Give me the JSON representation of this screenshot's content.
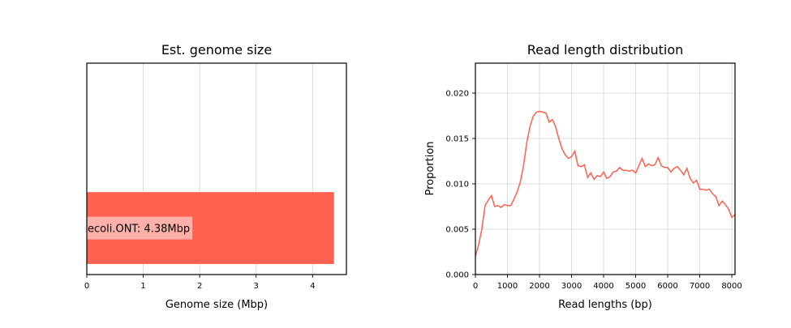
{
  "chart_data": [
    {
      "type": "bar",
      "orientation": "horizontal",
      "title": "Est. genome size",
      "xlabel": "Genome size (Mbp)",
      "ylabel": "",
      "xlim": [
        0,
        4.6
      ],
      "xticks": [
        0,
        1,
        2,
        3,
        4
      ],
      "grid": true,
      "categories": [
        "ecoli.ONT"
      ],
      "values": [
        4.38
      ],
      "bar_labels": [
        "ecoli.ONT: 4.38Mbp"
      ],
      "color": "#ff6150"
    },
    {
      "type": "line",
      "title": "Read length distribution",
      "xlabel": "Read lengths (bp)",
      "ylabel": "Proportion",
      "xlim": [
        0,
        8100
      ],
      "ylim": [
        0,
        0.0233
      ],
      "xticks": [
        0,
        1000,
        2000,
        3000,
        4000,
        5000,
        6000,
        7000,
        8000
      ],
      "yticks": [
        "0.000",
        "0.005",
        "0.010",
        "0.015",
        "0.020"
      ],
      "grid": true,
      "color": "#ff6150",
      "x": [
        0,
        100,
        200,
        300,
        400,
        500,
        600,
        700,
        800,
        900,
        1000,
        1100,
        1200,
        1300,
        1400,
        1500,
        1600,
        1700,
        1800,
        1900,
        2000,
        2100,
        2200,
        2300,
        2400,
        2500,
        2600,
        2700,
        2800,
        2900,
        3000,
        3100,
        3200,
        3300,
        3400,
        3500,
        3600,
        3700,
        3800,
        3900,
        4000,
        4100,
        4200,
        4300,
        4400,
        4500,
        4600,
        4700,
        4800,
        4900,
        5000,
        5100,
        5200,
        5300,
        5400,
        5500,
        5600,
        5700,
        5800,
        5900,
        6000,
        6100,
        6200,
        6300,
        6400,
        6500,
        6600,
        6700,
        6800,
        6900,
        7000,
        7100,
        7200,
        7300,
        7400,
        7500,
        7600,
        7700,
        7800,
        7900,
        8000,
        8100
      ],
      "y": [
        0.002,
        0.0033,
        0.005,
        0.0076,
        0.0082,
        0.0087,
        0.0075,
        0.0076,
        0.0074,
        0.0077,
        0.0076,
        0.0076,
        0.0083,
        0.0091,
        0.0102,
        0.012,
        0.0145,
        0.0163,
        0.0174,
        0.0179,
        0.018,
        0.0179,
        0.0178,
        0.0168,
        0.0171,
        0.0163,
        0.015,
        0.0139,
        0.0132,
        0.0128,
        0.013,
        0.0136,
        0.012,
        0.0119,
        0.0121,
        0.0107,
        0.0112,
        0.0105,
        0.0109,
        0.0108,
        0.0113,
        0.0106,
        0.0108,
        0.0113,
        0.0114,
        0.0118,
        0.0115,
        0.0115,
        0.0114,
        0.0115,
        0.0112,
        0.012,
        0.0128,
        0.0119,
        0.0122,
        0.012,
        0.0121,
        0.0129,
        0.012,
        0.0118,
        0.0118,
        0.0113,
        0.0117,
        0.0119,
        0.0115,
        0.011,
        0.0117,
        0.0106,
        0.0101,
        0.0104,
        0.0094,
        0.0094,
        0.0093,
        0.0094,
        0.0089,
        0.0086,
        0.0076,
        0.0081,
        0.0077,
        0.0072,
        0.0063,
        0.0066
      ]
    }
  ]
}
